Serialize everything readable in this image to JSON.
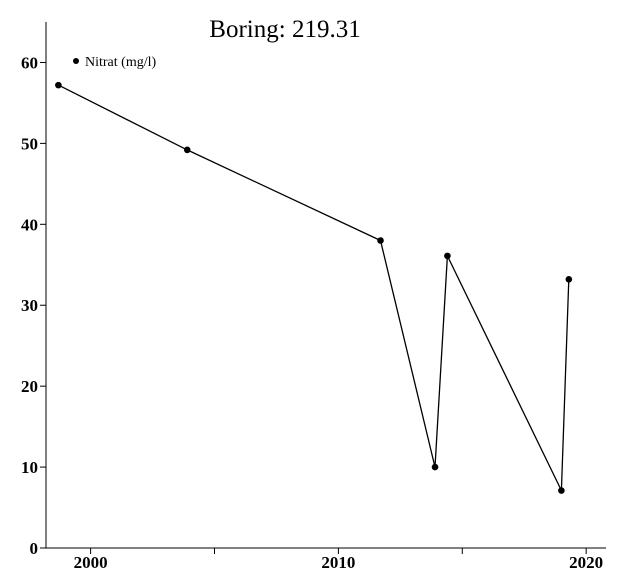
{
  "chart_data": {
    "type": "line",
    "title": "Boring: 219.31",
    "xlabel": "",
    "ylabel": "",
    "xlim": [
      1998.2,
      2020.8
    ],
    "ylim": [
      0,
      65
    ],
    "x_ticks": [
      2000,
      2010,
      2020
    ],
    "x_minor_ticks": [
      2005,
      2015
    ],
    "y_ticks": [
      0,
      10,
      20,
      30,
      40,
      50,
      60
    ],
    "grid": false,
    "legend_position": "top-left",
    "series": [
      {
        "name": "Nitrat (mg/l)",
        "color": "#000000",
        "marker": "circle",
        "points": [
          {
            "x": 1998.7,
            "y": 57.2
          },
          {
            "x": 2003.9,
            "y": 49.2
          },
          {
            "x": 2011.7,
            "y": 38.0
          },
          {
            "x": 2013.9,
            "y": 10.0
          },
          {
            "x": 2014.4,
            "y": 36.1
          },
          {
            "x": 2019.0,
            "y": 7.1
          },
          {
            "x": 2019.3,
            "y": 33.2
          }
        ]
      }
    ]
  }
}
